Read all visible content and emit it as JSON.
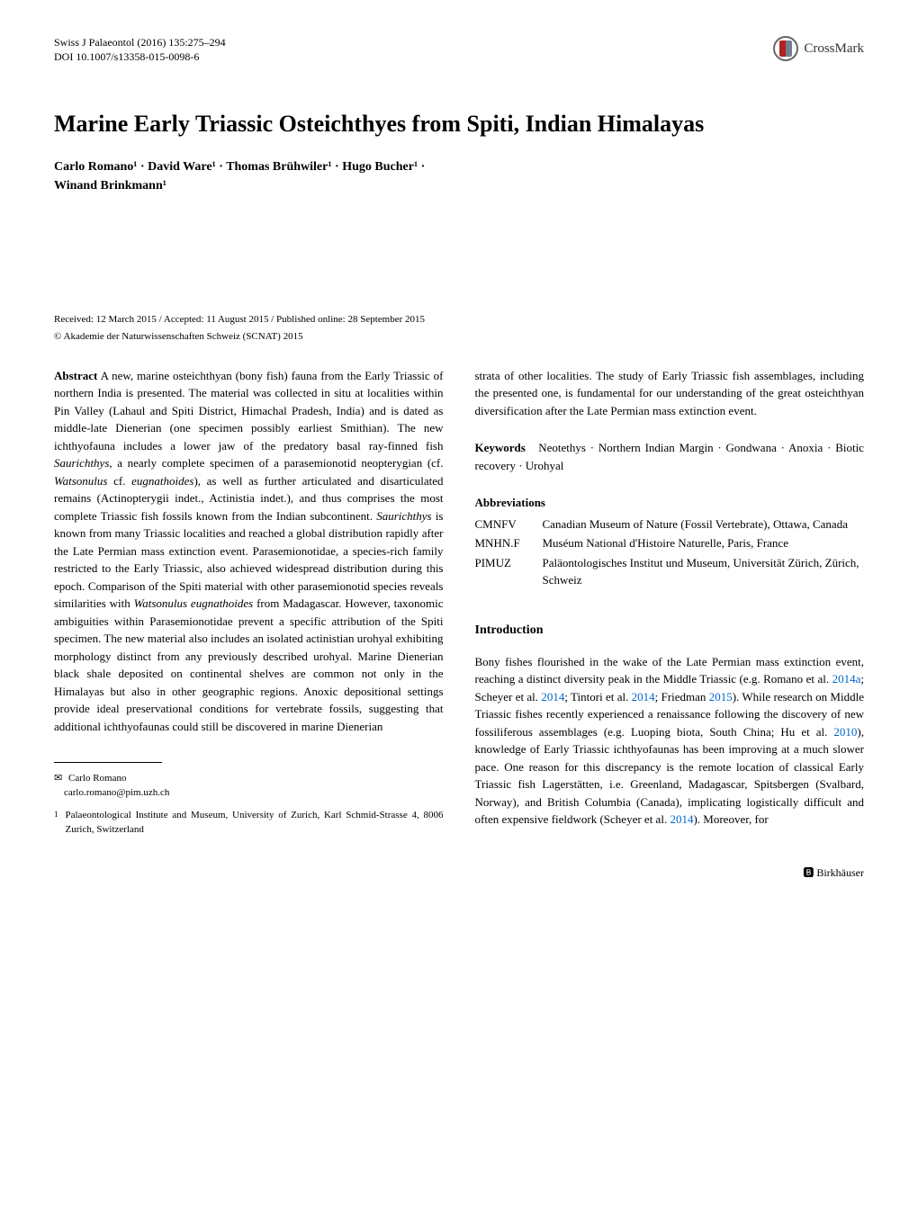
{
  "header": {
    "journal_line": "Swiss J Palaeontol (2016) 135:275–294",
    "doi": "DOI 10.1007/s13358-015-0098-6",
    "crossmark": "CrossMark"
  },
  "title": "Marine Early Triassic Osteichthyes from Spiti, Indian Himalayas",
  "authors_line1": "Carlo Romano¹ · David Ware¹ · Thomas Brühwiler¹ · Hugo Bucher¹ ·",
  "authors_line2": "Winand Brinkmann¹",
  "dates": "Received: 12 March 2015 / Accepted: 11 August 2015 / Published online: 28 September 2015",
  "copyright": "© Akademie der Naturwissenschaften Schweiz (SCNAT) 2015",
  "abstract_label": "Abstract",
  "abstract_body": "A new, marine osteichthyan (bony fish) fauna from the Early Triassic of northern India is presented. The material was collected in situ at localities within Pin Valley (Lahaul and Spiti District, Himachal Pradesh, India) and is dated as middle-late Dienerian (one specimen possibly earliest Smithian). The new ichthyofauna includes a lower jaw of the predatory basal ray-finned fish ",
  "abstract_i1": "Saurichthys",
  "abstract_body2": ", a nearly complete specimen of a parasemionotid neopterygian (cf. ",
  "abstract_i2": "Watsonulus",
  "abstract_body2b": " cf. ",
  "abstract_i3": "eugnathoides",
  "abstract_body3": "), as well as further articulated and disarticulated remains (Actinopterygii indet., Actinistia indet.), and thus comprises the most complete Triassic fish fossils known from the Indian subcontinent. ",
  "abstract_i4": "Saurichthys",
  "abstract_body4": " is known from many Triassic localities and reached a global distribution rapidly after the Late Permian mass extinction event. Parasemionotidae, a species-rich family restricted to the Early Triassic, also achieved widespread distribution during this epoch. Comparison of the Spiti material with other parasemionotid species reveals similarities with ",
  "abstract_i5": "Watsonulus eugnathoides",
  "abstract_body5": " from Madagascar. However, taxonomic ambiguities within Parasemionotidae prevent a specific attribution of the Spiti specimen. The new material also includes an isolated actinistian urohyal exhibiting morphology distinct from any previously described urohyal. Marine Dienerian black shale deposited on continental shelves are common not only in the Himalayas but also in other geographic regions. Anoxic depositional settings provide ideal preservational conditions for vertebrate fossils, suggesting that additional ichthyofaunas could still be discovered in marine Dienerian",
  "abstract_right": "strata of other localities. The study of Early Triassic fish assemblages, including the presented one, is fundamental for our understanding of the great osteichthyan diversification after the Late Permian mass extinction event.",
  "keywords_label": "Keywords",
  "keywords_text": "Neotethys · Northern Indian Margin · Gondwana · Anoxia · Biotic recovery · Urohyal",
  "abbrev_heading": "Abbreviations",
  "abbrevs": [
    {
      "key": "CMNFV",
      "val": "Canadian Museum of Nature (Fossil Vertebrate), Ottawa, Canada"
    },
    {
      "key": "MNHN.F",
      "val": "Muséum National d'Histoire Naturelle, Paris, France"
    },
    {
      "key": "PIMUZ",
      "val": "Paläontologisches Institut und Museum, Universität Zürich, Zürich, Schweiz"
    }
  ],
  "intro_heading": "Introduction",
  "intro_p1a": "Bony fishes flourished in the wake of the Late Permian mass extinction event, reaching a distinct diversity peak in the Middle Triassic (e.g. Romano et al. ",
  "intro_link1": "2014a",
  "intro_p1b": "; Scheyer et al. ",
  "intro_link2": "2014",
  "intro_p1c": "; Tintori et al. ",
  "intro_link3": "2014",
  "intro_p1d": "; Friedman ",
  "intro_link4": "2015",
  "intro_p1e": "). While research on Middle Triassic fishes recently experienced a renaissance following the discovery of new fossiliferous assemblages (e.g. Luoping biota, South China; Hu et al. ",
  "intro_link5": "2010",
  "intro_p1f": "), knowledge of Early Triassic ichthyofaunas has been improving at a much slower pace. One reason for this discrepancy is the remote location of classical Early Triassic fish Lagerstätten, i.e. Greenland, Madagascar, Spitsbergen (Svalbard, Norway), and British Columbia (Canada), implicating logistically difficult and often expensive fieldwork (Scheyer et al. ",
  "intro_link6": "2014",
  "intro_p1g": "). Moreover, for",
  "corresp_icon": "✉",
  "corresp_name": "Carlo Romano",
  "corresp_email": "carlo.romano@pim.uzh.ch",
  "affil_num": "1",
  "affil_text": "Palaeontological Institute and Museum, University of Zurich, Karl Schmid-Strasse 4, 8006 Zurich, Switzerland",
  "publisher_icon": "🅱",
  "publisher": "Birkhäuser"
}
